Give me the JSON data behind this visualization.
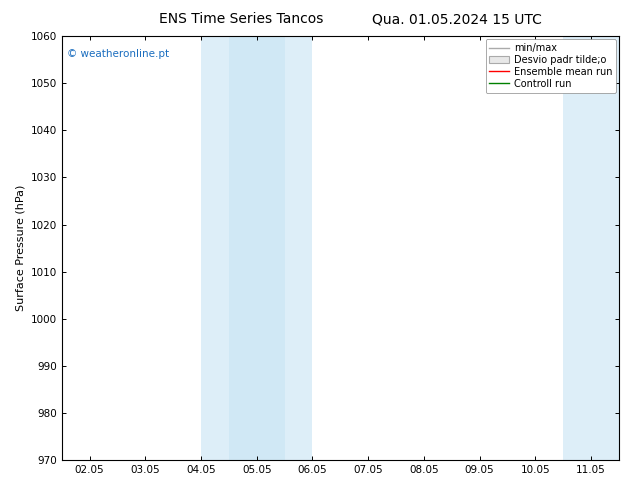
{
  "title_left": "ENS Time Series Tancos",
  "title_right": "Qua. 01.05.2024 15 UTC",
  "ylabel": "Surface Pressure (hPa)",
  "ylim": [
    970,
    1060
  ],
  "yticks": [
    970,
    980,
    990,
    1000,
    1010,
    1020,
    1030,
    1040,
    1050,
    1060
  ],
  "xtick_labels": [
    "02.05",
    "03.05",
    "04.05",
    "05.05",
    "06.05",
    "07.05",
    "08.05",
    "09.05",
    "10.05",
    "11.05"
  ],
  "xtick_positions": [
    0,
    1,
    2,
    3,
    4,
    5,
    6,
    7,
    8,
    9
  ],
  "xlim": [
    -0.5,
    9.5
  ],
  "shaded_bands": [
    {
      "xmin": 2.0,
      "xmax": 2.5,
      "color": "#ddeef8"
    },
    {
      "xmin": 2.5,
      "xmax": 3.5,
      "color": "#d0e8f5"
    },
    {
      "xmin": 3.5,
      "xmax": 4.0,
      "color": "#ddeef8"
    },
    {
      "xmin": 8.5,
      "xmax": 9.5,
      "color": "#ddeef8"
    }
  ],
  "legend_entries": [
    {
      "label": "min/max",
      "type": "line",
      "color": "#aaaaaa",
      "linewidth": 1.0
    },
    {
      "label": "Desvio padr tilde;o",
      "type": "rect",
      "facecolor": "#e8e8e8",
      "edgecolor": "#aaaaaa",
      "linewidth": 0.8
    },
    {
      "label": "Ensemble mean run",
      "type": "line",
      "color": "red",
      "linewidth": 1.0
    },
    {
      "label": "Controll run",
      "type": "line",
      "color": "green",
      "linewidth": 1.0
    }
  ],
  "watermark": "© weatheronline.pt",
  "watermark_color": "#1a6dbf",
  "background_color": "#ffffff",
  "plot_bg_color": "#ffffff",
  "title_fontsize": 10,
  "tick_fontsize": 7.5,
  "ylabel_fontsize": 8,
  "legend_fontsize": 7
}
